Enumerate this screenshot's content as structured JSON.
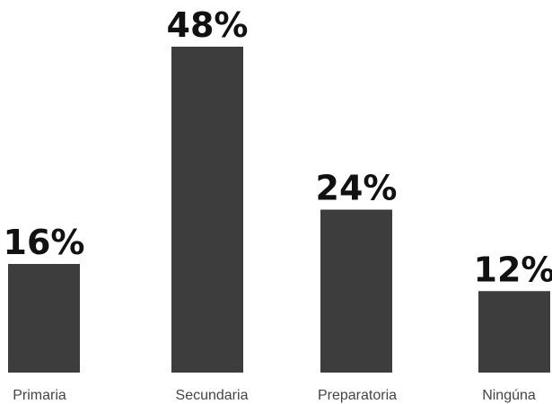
{
  "chart_data": {
    "type": "bar",
    "categories": [
      "Primaria",
      "Secundaria",
      "Preparatoria",
      "Ningúna"
    ],
    "values": [
      16,
      48,
      24,
      12
    ],
    "value_labels": [
      "16%",
      "48%",
      "24%",
      "12%"
    ],
    "unit": "%",
    "ylim": [
      0,
      48
    ],
    "grid": false,
    "legend": "none",
    "bar_color": "#3d3d3d"
  }
}
